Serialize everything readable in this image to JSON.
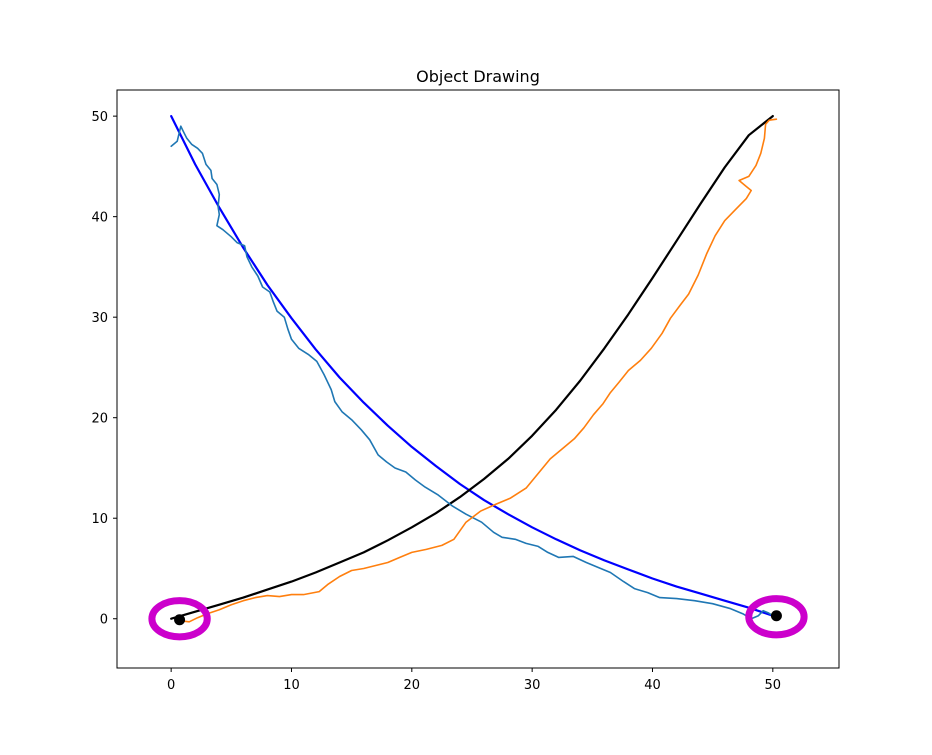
{
  "chart_data": {
    "type": "line",
    "title": "Object Drawing",
    "xlabel": "",
    "ylabel": "",
    "xlim": [
      -4.5,
      55.5
    ],
    "ylim": [
      -4.9,
      52.6
    ],
    "xticks": [
      0,
      10,
      20,
      30,
      40,
      50
    ],
    "yticks": [
      0,
      10,
      20,
      30,
      40,
      50
    ],
    "grid": false,
    "legend": "none",
    "series": [
      {
        "style": "smooth",
        "color": "#0000ff",
        "points": [
          [
            0,
            50
          ],
          [
            2,
            45.2
          ],
          [
            4,
            40.9
          ],
          [
            6,
            36.9
          ],
          [
            8,
            33.2
          ],
          [
            10,
            29.9
          ],
          [
            12,
            26.8
          ],
          [
            14,
            24.0
          ],
          [
            16,
            21.5
          ],
          [
            18,
            19.2
          ],
          [
            20,
            17.1
          ],
          [
            22,
            15.2
          ],
          [
            24,
            13.4
          ],
          [
            26,
            11.8
          ],
          [
            28,
            10.4
          ],
          [
            30,
            9.1
          ],
          [
            32,
            7.9
          ],
          [
            34,
            6.8
          ],
          [
            36,
            5.8
          ],
          [
            38,
            4.9
          ],
          [
            40,
            4.0
          ],
          [
            42,
            3.2
          ],
          [
            44,
            2.5
          ],
          [
            46,
            1.8
          ],
          [
            48,
            1.1
          ],
          [
            50,
            0.3
          ]
        ]
      },
      {
        "style": "smooth",
        "color": "#000000",
        "points": [
          [
            0,
            0
          ],
          [
            2,
            0.7
          ],
          [
            4,
            1.4
          ],
          [
            6,
            2.1
          ],
          [
            8,
            2.9
          ],
          [
            10,
            3.7
          ],
          [
            12,
            4.6
          ],
          [
            14,
            5.6
          ],
          [
            16,
            6.6
          ],
          [
            18,
            7.8
          ],
          [
            20,
            9.1
          ],
          [
            22,
            10.5
          ],
          [
            24,
            12.1
          ],
          [
            26,
            13.9
          ],
          [
            28,
            15.9
          ],
          [
            30,
            18.2
          ],
          [
            32,
            20.8
          ],
          [
            34,
            23.7
          ],
          [
            36,
            26.9
          ],
          [
            38,
            30.3
          ],
          [
            40,
            33.9
          ],
          [
            42,
            37.6
          ],
          [
            44,
            41.3
          ],
          [
            46,
            44.9
          ],
          [
            48,
            48.1
          ],
          [
            50,
            50
          ]
        ]
      },
      {
        "style": "noisy",
        "color": "#1f77b4",
        "points": [
          [
            0,
            47
          ],
          [
            0.5,
            47.5
          ],
          [
            0.8,
            49
          ],
          [
            1,
            48.5
          ],
          [
            1.3,
            47.8
          ],
          [
            1.7,
            47.2
          ],
          [
            2.2,
            46.8
          ],
          [
            2.6,
            46.3
          ],
          [
            2.9,
            45.2
          ],
          [
            3.3,
            44.6
          ],
          [
            3.4,
            43.8
          ],
          [
            3.8,
            43.2
          ],
          [
            4,
            42.2
          ],
          [
            3.9,
            41.0
          ],
          [
            4,
            40.2
          ],
          [
            3.8,
            39.1
          ],
          [
            4.3,
            38.7
          ],
          [
            5,
            38.0
          ],
          [
            5.5,
            37.4
          ],
          [
            6.1,
            37.1
          ],
          [
            6.3,
            36.0
          ],
          [
            6.7,
            35.0
          ],
          [
            7.2,
            34.1
          ],
          [
            7.6,
            33.0
          ],
          [
            8.2,
            32.5
          ],
          [
            8.5,
            31.5
          ],
          [
            8.8,
            30.6
          ],
          [
            9.4,
            30.0
          ],
          [
            9.7,
            28.8
          ],
          [
            10,
            27.8
          ],
          [
            10.6,
            26.9
          ],
          [
            11.4,
            26.3
          ],
          [
            12.1,
            25.6
          ],
          [
            12.7,
            24.3
          ],
          [
            13.3,
            22.8
          ],
          [
            13.6,
            21.6
          ],
          [
            14.2,
            20.6
          ],
          [
            15.0,
            19.8
          ],
          [
            15.8,
            18.8
          ],
          [
            16.5,
            17.8
          ],
          [
            17.2,
            16.3
          ],
          [
            17.9,
            15.6
          ],
          [
            18.6,
            15.0
          ],
          [
            19.5,
            14.6
          ],
          [
            20.3,
            13.8
          ],
          [
            21.1,
            13.1
          ],
          [
            22.2,
            12.3
          ],
          [
            23.4,
            11.2
          ],
          [
            24.5,
            10.4
          ],
          [
            25.8,
            9.6
          ],
          [
            26.8,
            8.6
          ],
          [
            27.5,
            8.1
          ],
          [
            28.6,
            7.9
          ],
          [
            29.5,
            7.5
          ],
          [
            30.5,
            7.2
          ],
          [
            31.3,
            6.6
          ],
          [
            32.2,
            6.1
          ],
          [
            33.4,
            6.2
          ],
          [
            34.5,
            5.6
          ],
          [
            35.5,
            5.1
          ],
          [
            36.5,
            4.6
          ],
          [
            37.6,
            3.7
          ],
          [
            38.5,
            3.0
          ],
          [
            39.6,
            2.6
          ],
          [
            40.6,
            2.1
          ],
          [
            42,
            2.0
          ],
          [
            43.5,
            1.8
          ],
          [
            45,
            1.5
          ],
          [
            46.5,
            1.0
          ],
          [
            47.5,
            0.5
          ],
          [
            48.2,
            0.0
          ],
          [
            48.8,
            0.3
          ],
          [
            49.2,
            0.8
          ],
          [
            49.6,
            0.6
          ],
          [
            50,
            0.3
          ]
        ]
      },
      {
        "style": "noisy",
        "color": "#ff7f0e",
        "points": [
          [
            0.8,
            -0.2
          ],
          [
            1.5,
            -0.3
          ],
          [
            2.2,
            0.1
          ],
          [
            3,
            0.5
          ],
          [
            4,
            0.9
          ],
          [
            5,
            1.4
          ],
          [
            6,
            1.8
          ],
          [
            7,
            2.1
          ],
          [
            8,
            2.3
          ],
          [
            9,
            2.2
          ],
          [
            10,
            2.4
          ],
          [
            11,
            2.4
          ],
          [
            12.3,
            2.7
          ],
          [
            13,
            3.4
          ],
          [
            14,
            4.2
          ],
          [
            15,
            4.8
          ],
          [
            16,
            5.0
          ],
          [
            17,
            5.3
          ],
          [
            18,
            5.6
          ],
          [
            19,
            6.1
          ],
          [
            20,
            6.6
          ],
          [
            21.2,
            6.9
          ],
          [
            22.5,
            7.3
          ],
          [
            23.5,
            7.9
          ],
          [
            24.5,
            9.6
          ],
          [
            25.7,
            10.7
          ],
          [
            27.0,
            11.4
          ],
          [
            28.2,
            12.0
          ],
          [
            29.5,
            13.0
          ],
          [
            30.6,
            14.6
          ],
          [
            31.5,
            15.9
          ],
          [
            32.5,
            16.9
          ],
          [
            33.5,
            17.9
          ],
          [
            34.3,
            19.0
          ],
          [
            35.1,
            20.3
          ],
          [
            35.9,
            21.4
          ],
          [
            36.5,
            22.5
          ],
          [
            37.2,
            23.5
          ],
          [
            38.0,
            24.7
          ],
          [
            39.0,
            25.7
          ],
          [
            39.9,
            26.9
          ],
          [
            40.8,
            28.4
          ],
          [
            41.5,
            29.9
          ],
          [
            42.3,
            31.2
          ],
          [
            43.0,
            32.3
          ],
          [
            43.8,
            34.2
          ],
          [
            44.5,
            36.3
          ],
          [
            45.2,
            38.1
          ],
          [
            46.0,
            39.6
          ],
          [
            46.9,
            40.7
          ],
          [
            47.8,
            41.8
          ],
          [
            48.2,
            42.6
          ],
          [
            47.8,
            43.0
          ],
          [
            47.2,
            43.6
          ],
          [
            48.0,
            44.0
          ],
          [
            48.6,
            45.1
          ],
          [
            49.0,
            46.3
          ],
          [
            49.3,
            47.8
          ],
          [
            49.4,
            49.2
          ],
          [
            49.7,
            49.6
          ],
          [
            50.3,
            49.7
          ]
        ]
      }
    ],
    "markers": [
      {
        "x": 0.7,
        "y": -0.1,
        "color": "#000000"
      },
      {
        "x": 50.3,
        "y": 0.3,
        "color": "#000000"
      }
    ],
    "rings": [
      {
        "x": 0.7,
        "y": 0.0,
        "rx": 2.3,
        "ry": 1.8,
        "color": "#cc00cc"
      },
      {
        "x": 50.3,
        "y": 0.2,
        "rx": 2.3,
        "ry": 1.8,
        "color": "#cc00cc"
      }
    ]
  }
}
